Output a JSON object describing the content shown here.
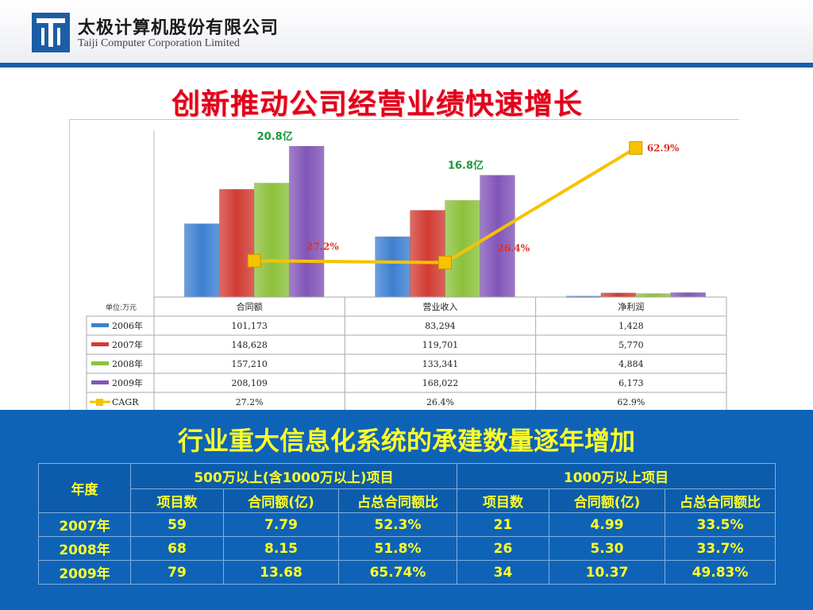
{
  "header": {
    "company_cn": "太极计算机股份有限公司",
    "company_en": "Taiji Computer Corporation Limited"
  },
  "page_title": "创新推动公司经营业绩快速增长",
  "chart_data": {
    "type": "bar",
    "unit_label": "单位:万元",
    "categories": [
      "合同额",
      "营业收入",
      "净利润"
    ],
    "series": [
      {
        "name": "2006年",
        "values": [
          101173,
          83294,
          1428
        ],
        "labels": [
          "101,173",
          "83,294",
          "1,428"
        ],
        "color": "#3d7fd1"
      },
      {
        "name": "2007年",
        "values": [
          148628,
          119701,
          5770
        ],
        "labels": [
          "148,628",
          "119,701",
          "5,770"
        ],
        "color": "#d23b33"
      },
      {
        "name": "2008年",
        "values": [
          157210,
          133341,
          4884
        ],
        "labels": [
          "157,210",
          "133,341",
          "4,884"
        ],
        "color": "#8cc13c"
      },
      {
        "name": "2009年",
        "values": [
          208109,
          168022,
          6173
        ],
        "labels": [
          "208,109",
          "168,022",
          "6,173"
        ],
        "color": "#8255b8"
      }
    ],
    "cagr": {
      "name": "CAGR",
      "values": [
        27.2,
        26.4,
        62.9
      ],
      "labels": [
        "27.2%",
        "26.4%",
        "62.9%"
      ],
      "color": "#f7c200"
    },
    "annotations": [
      "20.8亿",
      "16.8亿"
    ]
  },
  "section": {
    "title": "行业重大信息化系统的承建数量逐年增加",
    "table": {
      "year_header": "年度",
      "group1": "500万以上(含1000万以上)项目",
      "group2": "1000万以上项目",
      "subheaders": [
        "项目数",
        "合同额(亿)",
        "占总合同额比",
        "项目数",
        "合同额(亿)",
        "占总合同额比"
      ],
      "rows": [
        {
          "year": "2007年",
          "cells": [
            "59",
            "7.79",
            "52.3%",
            "21",
            "4.99",
            "33.5%"
          ]
        },
        {
          "year": "2008年",
          "cells": [
            "68",
            "8.15",
            "51.8%",
            "26",
            "5.30",
            "33.7%"
          ]
        },
        {
          "year": "2009年",
          "cells": [
            "79",
            "13.68",
            "65.74%",
            "34",
            "10.37",
            "49.83%"
          ]
        }
      ]
    }
  }
}
